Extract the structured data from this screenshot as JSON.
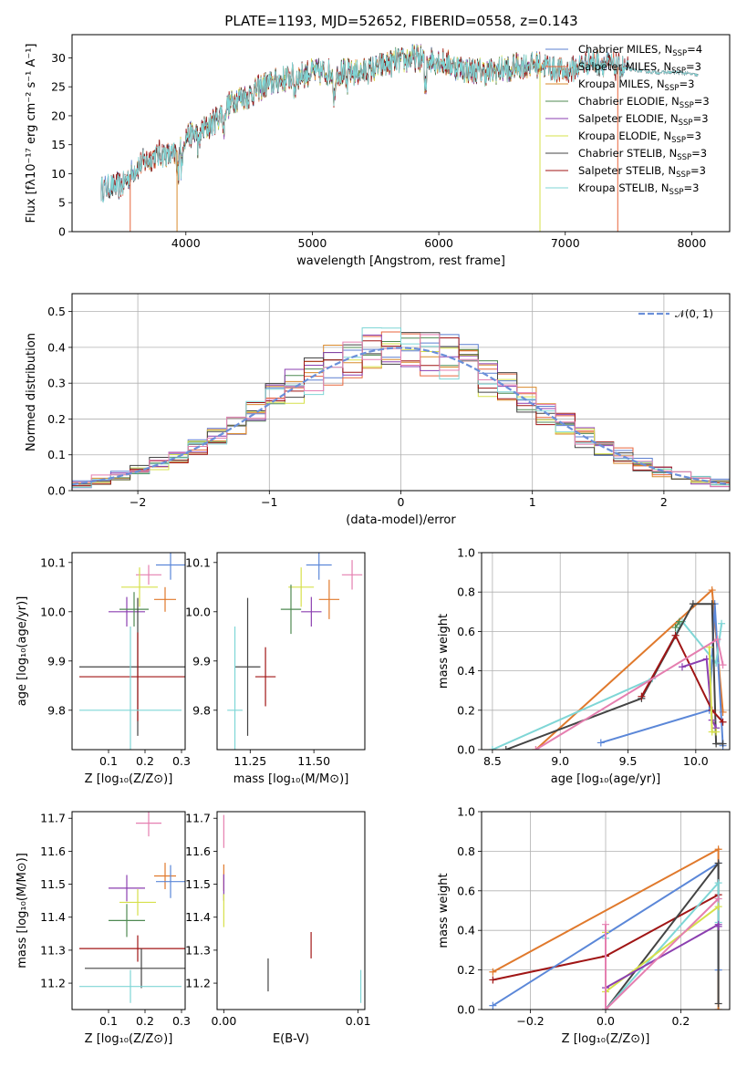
{
  "figure": {
    "title": "PLATE=1193, MJD=52652, FIBERID=0558, z=0.143"
  },
  "colors": {
    "chabrier_miles": "#5b7fd0",
    "salpeter_miles": "#e8663c",
    "kroupa_miles": "#d98a2c",
    "chabrier_elodie": "#4f8a52",
    "salpeter_elodie": "#8b3fb0",
    "kroupa_elodie": "#d6e04a",
    "chabrier_stelib": "#444444",
    "salpeter_stelib": "#a01515",
    "kroupa_stelib": "#7fd6d6",
    "normal": "#6a8fd9",
    "pink": "#e57fb0",
    "orange": "#e0792c",
    "blue": "#5b87d8"
  },
  "chart_data": [
    {
      "type": "line",
      "name": "spectrum",
      "title": "PLATE=1193, MJD=52652, FIBERID=0558, z=0.143",
      "xlabel": "wavelength [Angstrom, rest frame]",
      "ylabel": "Flux [fλ10⁻¹⁷ erg cm⁻² s⁻¹ A⁻¹]",
      "xlim": [
        3100,
        8300
      ],
      "ylim": [
        0,
        34
      ],
      "xticks": [
        "4000",
        "5000",
        "6000",
        "7000",
        "8000"
      ],
      "yticks": [
        "0",
        "5",
        "10",
        "15",
        "20",
        "25",
        "30"
      ],
      "grid": false,
      "legend_position": "upper-right",
      "series": [
        {
          "name": "Chabrier MILES, N",
          "sub": "SSP",
          "suffix": "=4"
        },
        {
          "name": "Salpeter MILES, N",
          "sub": "SSP",
          "suffix": "=3"
        },
        {
          "name": "Kroupa MILES, N",
          "sub": "SSP",
          "suffix": "=3"
        },
        {
          "name": "Chabrier ELODIE, N",
          "sub": "SSP",
          "suffix": "=3"
        },
        {
          "name": "Salpeter ELODIE, N",
          "sub": "SSP",
          "suffix": "=3"
        },
        {
          "name": "Kroupa ELODIE, N",
          "sub": "SSP",
          "suffix": "=3"
        },
        {
          "name": "Chabrier STELIB, N",
          "sub": "SSP",
          "suffix": "=3"
        },
        {
          "name": "Salpeter STELIB, N",
          "sub": "SSP",
          "suffix": "=3"
        },
        {
          "name": "Kroupa STELIB, N",
          "sub": "SSP",
          "suffix": "=3"
        }
      ],
      "continuum": {
        "x": [
          3330,
          3500,
          3600,
          3700,
          3800,
          3900,
          4000,
          4100,
          4200,
          4300,
          4400,
          4500,
          4600,
          4800,
          5000,
          5200,
          5400,
          5600,
          5800,
          6000,
          6200,
          6400,
          6600,
          6800,
          7000,
          7200,
          7400,
          7500,
          7700,
          7900,
          8050
        ],
        "y": [
          7.5,
          8.0,
          11.0,
          12.5,
          13.5,
          13.0,
          16.5,
          17.0,
          18.5,
          21.0,
          23.0,
          23.5,
          25.0,
          26.5,
          27.5,
          27.5,
          27.5,
          29.0,
          30.0,
          29.5,
          28.0,
          27.5,
          28.5,
          29.0,
          27.5,
          29.5,
          28.5,
          28.0,
          27.5,
          27.5,
          27.0
        ]
      }
    },
    {
      "type": "histogram",
      "name": "residuals",
      "xlabel": "(data-model)/error",
      "ylabel": "Normed distribution",
      "xlim": [
        -2.5,
        2.5
      ],
      "ylim": [
        0,
        0.55
      ],
      "xticks": [
        "−2",
        "−1",
        "0",
        "1",
        "2"
      ],
      "yticks": [
        "0.0",
        "0.1",
        "0.2",
        "0.3",
        "0.4",
        "0.5"
      ],
      "grid": true,
      "legend_position": "upper-right",
      "legend_label": "𝒩(0, 1)",
      "bin_edges_range": [
        -2.5,
        2.5
      ],
      "bin_count": 34
    },
    {
      "type": "errorbar",
      "name": "age-vs-metallicity",
      "xlabel": "Z [log₁₀(Z/Z⊙)]",
      "ylabel": "age  [log₁₀(age/yr)]",
      "xlim": [
        0.0,
        0.31
      ],
      "ylim": [
        9.72,
        10.12
      ],
      "xticks": [
        "0.1",
        "0.2",
        "0.3"
      ],
      "yticks": [
        "9.8",
        "9.9",
        "10.0",
        "10.1"
      ],
      "points": [
        {
          "color": "pink",
          "x": 0.21,
          "xerr": 0.035,
          "y": 10.075,
          "yerr": 0.02
        },
        {
          "color": "orange",
          "x": 0.255,
          "xerr": 0.03,
          "y": 10.025,
          "yerr": 0.025
        },
        {
          "color": "blue",
          "x": 0.27,
          "xerr": 0.04,
          "y": 10.095,
          "yerr": 0.03
        },
        {
          "color": "kroupa_elodie",
          "x": 0.185,
          "xerr": 0.05,
          "y": 10.05,
          "yerr": 0.04
        },
        {
          "color": "salpeter_elodie",
          "x": 0.15,
          "xerr": 0.05,
          "y": 10.0,
          "yerr": 0.03
        },
        {
          "color": "chabrier_elodie",
          "x": 0.17,
          "xerr": 0.04,
          "y": 10.005,
          "yerr": 0.035
        },
        {
          "color": "chabrier_stelib",
          "x": 0.18,
          "xerr": 0.16,
          "y": 9.888,
          "yerr": 0.14
        },
        {
          "color": "salpeter_stelib",
          "x": 0.18,
          "xerr": 0.16,
          "y": 9.868,
          "yerr": 0.09
        },
        {
          "color": "kroupa_stelib",
          "x": 0.16,
          "xerr": 0.14,
          "y": 9.8,
          "yerr": 0.17
        }
      ]
    },
    {
      "type": "errorbar",
      "name": "age-vs-mass",
      "xlabel": "mass [log₁₀(M/M⊙)]",
      "ylabel": "",
      "xlim": [
        11.12,
        11.7
      ],
      "ylim": [
        9.72,
        10.12
      ],
      "xticks": [
        "11.25",
        "11.50"
      ],
      "yticks": [
        "9.8",
        "9.9",
        "10.0",
        "10.1"
      ],
      "points": [
        {
          "color": "pink",
          "x": 11.65,
          "xerr": 0.04,
          "y": 10.075,
          "yerr": 0.03
        },
        {
          "color": "orange",
          "x": 11.56,
          "xerr": 0.04,
          "y": 10.025,
          "yerr": 0.04
        },
        {
          "color": "blue",
          "x": 11.52,
          "xerr": 0.05,
          "y": 10.095,
          "yerr": 0.03
        },
        {
          "color": "kroupa_elodie",
          "x": 11.45,
          "xerr": 0.05,
          "y": 10.05,
          "yerr": 0.04
        },
        {
          "color": "salpeter_elodie",
          "x": 11.49,
          "xerr": 0.04,
          "y": 10.0,
          "yerr": 0.03
        },
        {
          "color": "chabrier_elodie",
          "x": 11.41,
          "xerr": 0.04,
          "y": 10.005,
          "yerr": 0.05
        },
        {
          "color": "chabrier_stelib",
          "x": 11.24,
          "xerr": 0.05,
          "y": 9.888,
          "yerr": 0.14
        },
        {
          "color": "salpeter_stelib",
          "x": 11.31,
          "xerr": 0.04,
          "y": 9.868,
          "yerr": 0.06
        },
        {
          "color": "kroupa_stelib",
          "x": 11.19,
          "xerr": 0.03,
          "y": 9.8,
          "yerr": 0.17
        }
      ]
    },
    {
      "type": "line",
      "name": "mass-weight-vs-age",
      "xlabel": "age  [log₁₀(age/yr)]",
      "ylabel": "mass weight",
      "xlim": [
        8.42,
        10.25
      ],
      "ylim": [
        0,
        1.0
      ],
      "xticks": [
        "8.5",
        "9.0",
        "9.5",
        "10.0"
      ],
      "yticks": [
        "0.0",
        "0.2",
        "0.4",
        "0.6",
        "0.8",
        "1.0"
      ],
      "grid": true,
      "series": [
        {
          "color": "orange",
          "x": [
            8.82,
            10.12,
            10.2
          ],
          "y": [
            0.0,
            0.81,
            0.19
          ]
        },
        {
          "color": "blue",
          "x": [
            9.3,
            10.1,
            10.14,
            10.2
          ],
          "y": [
            0.035,
            0.2,
            0.74,
            0.02
          ]
        },
        {
          "color": "kroupa_stelib",
          "x": [
            8.5,
            9.68,
            9.9,
            10.15,
            10.19
          ],
          "y": [
            0.0,
            0.36,
            0.65,
            0.44,
            0.64
          ]
        },
        {
          "color": "chabrier_stelib",
          "x": [
            8.6,
            9.6,
            9.98,
            10.12,
            10.15,
            10.2
          ],
          "y": [
            0.0,
            0.26,
            0.74,
            0.74,
            0.03,
            0.03
          ]
        },
        {
          "color": "salpeter_stelib",
          "x": [
            9.6,
            9.85,
            10.12,
            10.2
          ],
          "y": [
            0.27,
            0.58,
            0.2,
            0.14
          ]
        },
        {
          "color": "salpeter_elodie",
          "x": [
            9.9,
            10.08,
            10.12,
            10.15
          ],
          "y": [
            0.42,
            0.46,
            0.15,
            0.11
          ]
        },
        {
          "color": "kroupa_elodie",
          "x": [
            10.1,
            10.12,
            10.15
          ],
          "y": [
            0.52,
            0.09,
            0.09
          ]
        },
        {
          "color": "pink",
          "x": [
            8.82,
            10.16,
            10.2
          ],
          "y": [
            0.0,
            0.56,
            0.43
          ]
        },
        {
          "color": "chabrier_elodie",
          "x": [
            9.85,
            9.88
          ],
          "y": [
            0.62,
            0.65
          ]
        }
      ]
    },
    {
      "type": "errorbar",
      "name": "mass-vs-metallicity",
      "xlabel": "Z [log₁₀(Z/Z⊙)]",
      "ylabel": "mass [log₁₀(M/M⊙)]",
      "xlim": [
        0.0,
        0.31
      ],
      "ylim": [
        11.12,
        11.72
      ],
      "xticks": [
        "0.1",
        "0.2",
        "0.3"
      ],
      "yticks": [
        "11.2",
        "11.3",
        "11.4",
        "11.5",
        "11.6",
        "11.7"
      ],
      "points": [
        {
          "color": "pink",
          "x": 0.21,
          "xerr": 0.035,
          "y": 11.685,
          "yerr": 0.04
        },
        {
          "color": "orange",
          "x": 0.255,
          "xerr": 0.03,
          "y": 11.525,
          "yerr": 0.04
        },
        {
          "color": "blue",
          "x": 0.27,
          "xerr": 0.04,
          "y": 11.508,
          "yerr": 0.05
        },
        {
          "color": "salpeter_elodie",
          "x": 0.15,
          "xerr": 0.05,
          "y": 11.488,
          "yerr": 0.04
        },
        {
          "color": "kroupa_elodie",
          "x": 0.18,
          "xerr": 0.05,
          "y": 11.445,
          "yerr": 0.04
        },
        {
          "color": "chabrier_elodie",
          "x": 0.15,
          "xerr": 0.05,
          "y": 11.39,
          "yerr": 0.05
        },
        {
          "color": "salpeter_stelib",
          "x": 0.18,
          "xerr": 0.16,
          "y": 11.305,
          "yerr": 0.04
        },
        {
          "color": "chabrier_stelib",
          "x": 0.19,
          "xerr": 0.155,
          "y": 11.245,
          "yerr": 0.06
        },
        {
          "color": "kroupa_stelib",
          "x": 0.16,
          "xerr": 0.14,
          "y": 11.19,
          "yerr": 0.05
        }
      ]
    },
    {
      "type": "errorbar",
      "name": "mass-vs-extinction",
      "xlabel": "E(B-V)",
      "ylabel": "",
      "xlim": [
        -0.0005,
        0.0105
      ],
      "ylim": [
        11.12,
        11.72
      ],
      "xticks": [
        "0.00",
        "0.01"
      ],
      "yticks": [
        "11.2",
        "11.3",
        "11.4",
        "11.5",
        "11.6",
        "11.7"
      ],
      "points": [
        {
          "color": "pink",
          "x": 0.0,
          "y": 11.66,
          "yerr": 0.05
        },
        {
          "color": "orange",
          "x": 0.0,
          "y": 11.52,
          "yerr": 0.04
        },
        {
          "color": "salpeter_elodie",
          "x": 0.0,
          "y": 11.49,
          "yerr": 0.04
        },
        {
          "color": "kroupa_elodie",
          "x": 0.0,
          "y": 11.42,
          "yerr": 0.05
        },
        {
          "color": "salpeter_stelib",
          "x": 0.0065,
          "y": 11.315,
          "yerr": 0.04
        },
        {
          "color": "chabrier_stelib",
          "x": 0.0033,
          "y": 11.225,
          "yerr": 0.05
        },
        {
          "color": "kroupa_stelib",
          "x": 0.0102,
          "y": 11.19,
          "yerr": 0.05
        }
      ]
    },
    {
      "type": "line",
      "name": "mass-weight-vs-metallicity",
      "xlabel": "Z [log₁₀(Z/Z⊙)]",
      "ylabel": "mass weight",
      "xlim": [
        -0.33,
        0.33
      ],
      "ylim": [
        0,
        1.0
      ],
      "xticks": [
        "−0.2",
        "0.0",
        "0.2"
      ],
      "yticks": [
        "0.0",
        "0.2",
        "0.4",
        "0.6",
        "0.8",
        "1.0"
      ],
      "grid": true,
      "series": [
        {
          "color": "orange",
          "x": [
            -0.3,
            0.3,
            0.3
          ],
          "y": [
            0.19,
            0.81,
            0.0
          ]
        },
        {
          "color": "salpeter_stelib",
          "x": [
            -0.3,
            0.0,
            0.3
          ],
          "y": [
            0.15,
            0.27,
            0.58
          ]
        },
        {
          "color": "blue",
          "x": [
            -0.3,
            0.3,
            0.3
          ],
          "y": [
            0.02,
            0.74,
            0.2
          ]
        },
        {
          "color": "chabrier_stelib",
          "x": [
            0.0,
            0.3,
            0.3
          ],
          "y": [
            0.0,
            0.74,
            0.03
          ]
        },
        {
          "color": "kroupa_stelib",
          "x": [
            0.0,
            0.0,
            0.3,
            0.3
          ],
          "y": [
            0.36,
            0.0,
            0.64,
            0.44
          ]
        },
        {
          "color": "kroupa_elodie",
          "x": [
            0.0,
            0.0,
            0.3
          ],
          "y": [
            0.39,
            0.09,
            0.52
          ]
        },
        {
          "color": "salpeter_elodie",
          "x": [
            0.0,
            0.3,
            0.3
          ],
          "y": [
            0.11,
            0.43,
            0.42
          ]
        },
        {
          "color": "pink",
          "x": [
            0.0,
            0.0,
            0.3
          ],
          "y": [
            0.43,
            0.0,
            0.56
          ]
        }
      ]
    }
  ]
}
